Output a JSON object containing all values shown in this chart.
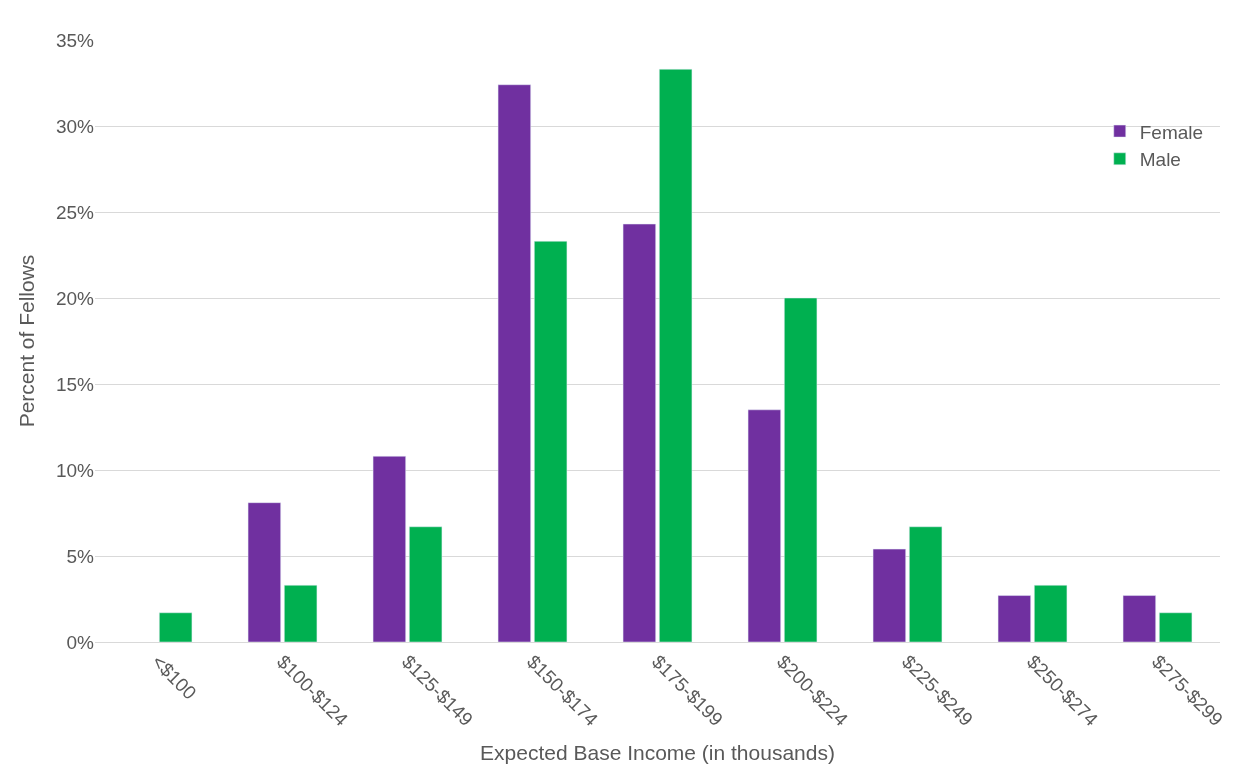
{
  "chart_data": {
    "type": "bar",
    "xlabel": "Expected Base Income (in thousands)",
    "ylabel": "Percent of Fellows",
    "categories": [
      "<$100",
      "$100-$124",
      "$125-$149",
      "$150-$174",
      "$175-$199",
      "$200-$224",
      "$225-$249",
      "$250-$274",
      "$275-$299"
    ],
    "series": [
      {
        "name": "Female",
        "color": "#7030a0",
        "values": [
          null,
          8.1,
          10.8,
          32.4,
          24.3,
          13.5,
          5.4,
          2.7,
          2.7
        ]
      },
      {
        "name": "Male",
        "color": "#00b050",
        "values": [
          1.7,
          3.3,
          6.7,
          23.3,
          33.3,
          20.0,
          6.7,
          3.3,
          1.7
        ]
      }
    ],
    "ylim": [
      0,
      35
    ],
    "yticks": [
      {
        "value": 0,
        "label": "0%"
      },
      {
        "value": 5,
        "label": "5%"
      },
      {
        "value": 10,
        "label": "10%"
      },
      {
        "value": 15,
        "label": "15%"
      },
      {
        "value": 20,
        "label": "20%"
      },
      {
        "value": 25,
        "label": "25%"
      },
      {
        "value": 30,
        "label": "30%"
      },
      {
        "value": 35,
        "label": "35%"
      }
    ],
    "grid": "y",
    "legend": "top right"
  }
}
